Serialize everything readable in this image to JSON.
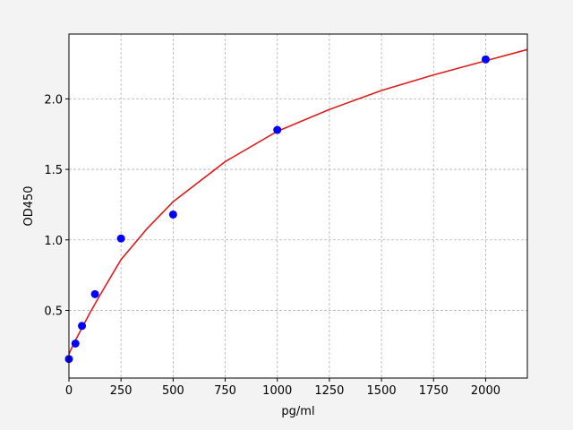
{
  "chart_data": {
    "type": "scatter",
    "xlabel": "pg/ml",
    "ylabel": "OD450",
    "xlim": [
      0,
      2200
    ],
    "ylim": [
      0.02,
      2.46
    ],
    "xticks": [
      0,
      250,
      500,
      750,
      1000,
      1250,
      1500,
      1750,
      2000
    ],
    "yticks": [
      0.5,
      {
        "value": 1.0,
        "label": "1.0"
      },
      1.5,
      {
        "value": 2.0,
        "label": "2.0"
      }
    ],
    "grid": true,
    "series": [
      {
        "kind": "markers",
        "color": "#0000ff",
        "x": [
          0,
          31.25,
          62.5,
          125,
          250,
          500,
          1000,
          2000
        ],
        "values": [
          0.155,
          0.265,
          0.39,
          0.615,
          1.01,
          1.18,
          1.78,
          2.28
        ]
      },
      {
        "kind": "line",
        "color": "#dd1c1c",
        "x": [
          0,
          25,
          50,
          100,
          150,
          250,
          375,
          500,
          750,
          1000,
          1250,
          1500,
          1750,
          2000,
          2200
        ],
        "values": [
          0.19,
          0.27,
          0.34,
          0.48,
          0.61,
          0.86,
          1.08,
          1.27,
          1.555,
          1.77,
          1.925,
          2.06,
          2.17,
          2.27,
          2.35
        ]
      }
    ]
  }
}
